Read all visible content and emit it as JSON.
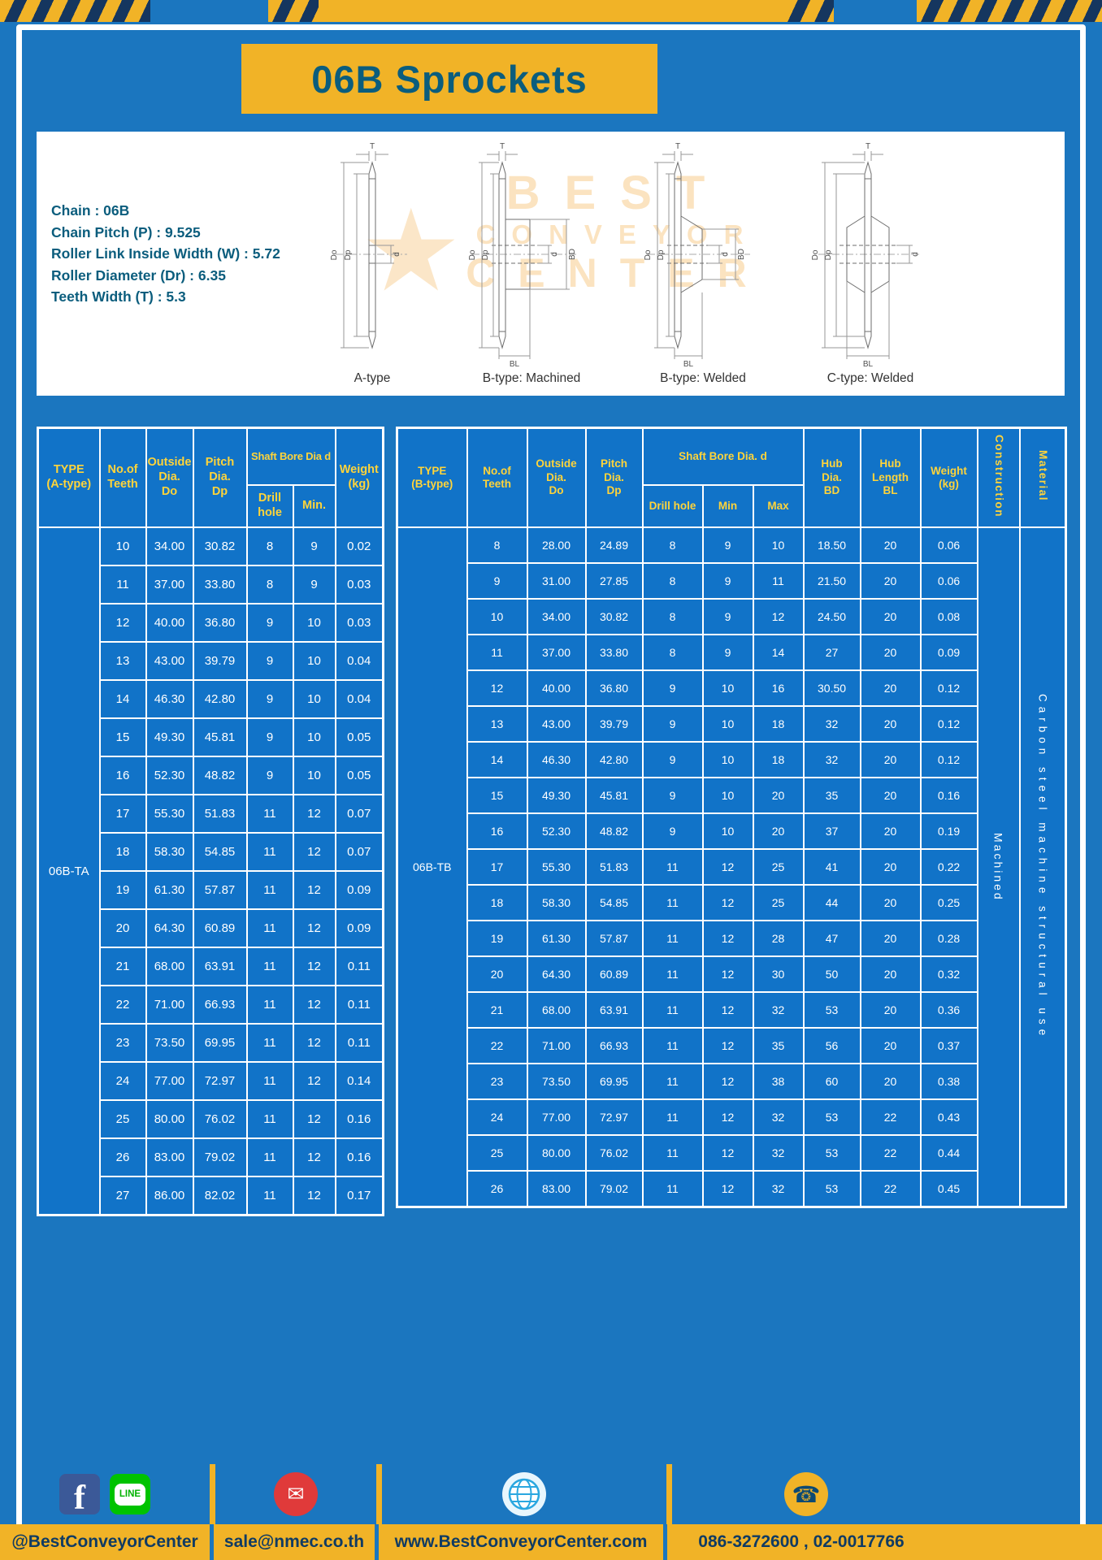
{
  "title": "06B Sprockets",
  "specs": [
    "Chain : 06B",
    "Chain Pitch (P) : 9.525",
    "Roller Link Inside Width (W) : 5.72",
    "Roller Diameter (Dr) : 6.35",
    "Teeth Width (T) : 5.3"
  ],
  "watermark": [
    "BEST",
    "CONVEYOR",
    "CENTER"
  ],
  "dim": {
    "T": "T",
    "Do": "Do",
    "Dp": "Dp",
    "d": "d",
    "BD": "BD",
    "BL": "BL"
  },
  "drawings": {
    "captions": [
      "A-type",
      "B-type: Machined",
      "B-type: Welded",
      "C-type: Welded"
    ]
  },
  "table_a": {
    "headers": {
      "type": "TYPE\n(A-type)",
      "teeth": "No.of\nTeeth",
      "outside": "Outside\nDia.\nDo",
      "pitch": "Pitch Dia.\nDp",
      "bore_group": "Shaft Bore Dia d",
      "drill": "Drill hole",
      "min": "Min.",
      "weight": "Weight\n(kg)"
    },
    "type_label": "06B-TA",
    "rows": [
      [
        "10",
        "34.00",
        "30.82",
        "8",
        "9",
        "0.02"
      ],
      [
        "11",
        "37.00",
        "33.80",
        "8",
        "9",
        "0.03"
      ],
      [
        "12",
        "40.00",
        "36.80",
        "9",
        "10",
        "0.03"
      ],
      [
        "13",
        "43.00",
        "39.79",
        "9",
        "10",
        "0.04"
      ],
      [
        "14",
        "46.30",
        "42.80",
        "9",
        "10",
        "0.04"
      ],
      [
        "15",
        "49.30",
        "45.81",
        "9",
        "10",
        "0.05"
      ],
      [
        "16",
        "52.30",
        "48.82",
        "9",
        "10",
        "0.05"
      ],
      [
        "17",
        "55.30",
        "51.83",
        "11",
        "12",
        "0.07"
      ],
      [
        "18",
        "58.30",
        "54.85",
        "11",
        "12",
        "0.07"
      ],
      [
        "19",
        "61.30",
        "57.87",
        "11",
        "12",
        "0.09"
      ],
      [
        "20",
        "64.30",
        "60.89",
        "11",
        "12",
        "0.09"
      ],
      [
        "21",
        "68.00",
        "63.91",
        "11",
        "12",
        "0.11"
      ],
      [
        "22",
        "71.00",
        "66.93",
        "11",
        "12",
        "0.11"
      ],
      [
        "23",
        "73.50",
        "69.95",
        "11",
        "12",
        "0.11"
      ],
      [
        "24",
        "77.00",
        "72.97",
        "11",
        "12",
        "0.14"
      ],
      [
        "25",
        "80.00",
        "76.02",
        "11",
        "12",
        "0.16"
      ],
      [
        "26",
        "83.00",
        "79.02",
        "11",
        "12",
        "0.16"
      ],
      [
        "27",
        "86.00",
        "82.02",
        "11",
        "12",
        "0.17"
      ]
    ]
  },
  "table_b": {
    "headers": {
      "type": "TYPE\n(B-type)",
      "teeth": "No.of\nTeeth",
      "outside": "Outside\nDia.\nDo",
      "pitch": "Pitch\nDia.\nDp",
      "bore_group": "Shaft Bore Dia.  d",
      "drill": "Drill hole",
      "min": "Min",
      "max": "Max",
      "hub_dia": "Hub\nDia.\nBD",
      "hub_len": "Hub\nLength\nBL",
      "weight": "Weight\n(kg)",
      "construction": "Construction",
      "material": "Material"
    },
    "type_label": "06B-TB",
    "construction_value": "Machined",
    "material_value": "Carbon steel machine structural use",
    "rows": [
      [
        "8",
        "28.00",
        "24.89",
        "8",
        "9",
        "10",
        "18.50",
        "20",
        "0.06"
      ],
      [
        "9",
        "31.00",
        "27.85",
        "8",
        "9",
        "11",
        "21.50",
        "20",
        "0.06"
      ],
      [
        "10",
        "34.00",
        "30.82",
        "8",
        "9",
        "12",
        "24.50",
        "20",
        "0.08"
      ],
      [
        "11",
        "37.00",
        "33.80",
        "8",
        "9",
        "14",
        "27",
        "20",
        "0.09"
      ],
      [
        "12",
        "40.00",
        "36.80",
        "9",
        "10",
        "16",
        "30.50",
        "20",
        "0.12"
      ],
      [
        "13",
        "43.00",
        "39.79",
        "9",
        "10",
        "18",
        "32",
        "20",
        "0.12"
      ],
      [
        "14",
        "46.30",
        "42.80",
        "9",
        "10",
        "18",
        "32",
        "20",
        "0.12"
      ],
      [
        "15",
        "49.30",
        "45.81",
        "9",
        "10",
        "20",
        "35",
        "20",
        "0.16"
      ],
      [
        "16",
        "52.30",
        "48.82",
        "9",
        "10",
        "20",
        "37",
        "20",
        "0.19"
      ],
      [
        "17",
        "55.30",
        "51.83",
        "11",
        "12",
        "25",
        "41",
        "20",
        "0.22"
      ],
      [
        "18",
        "58.30",
        "54.85",
        "11",
        "12",
        "25",
        "44",
        "20",
        "0.25"
      ],
      [
        "19",
        "61.30",
        "57.87",
        "11",
        "12",
        "28",
        "47",
        "20",
        "0.28"
      ],
      [
        "20",
        "64.30",
        "60.89",
        "11",
        "12",
        "30",
        "50",
        "20",
        "0.32"
      ],
      [
        "21",
        "68.00",
        "63.91",
        "11",
        "12",
        "32",
        "53",
        "20",
        "0.36"
      ],
      [
        "22",
        "71.00",
        "66.93",
        "11",
        "12",
        "35",
        "56",
        "20",
        "0.37"
      ],
      [
        "23",
        "73.50",
        "69.95",
        "11",
        "12",
        "38",
        "60",
        "20",
        "0.38"
      ],
      [
        "24",
        "77.00",
        "72.97",
        "11",
        "12",
        "32",
        "53",
        "22",
        "0.43"
      ],
      [
        "25",
        "80.00",
        "76.02",
        "11",
        "12",
        "32",
        "53",
        "22",
        "0.44"
      ],
      [
        "26",
        "83.00",
        "79.02",
        "11",
        "12",
        "32",
        "53",
        "22",
        "0.45"
      ]
    ]
  },
  "footer": {
    "social_handle": "@BestConveyorCenter",
    "email": "sale@nmec.co.th",
    "website": "www.BestConveyorCenter.com",
    "phones": "086-3272600 , 02-0017766",
    "line_label": "LINE",
    "facebook_f": "f"
  }
}
